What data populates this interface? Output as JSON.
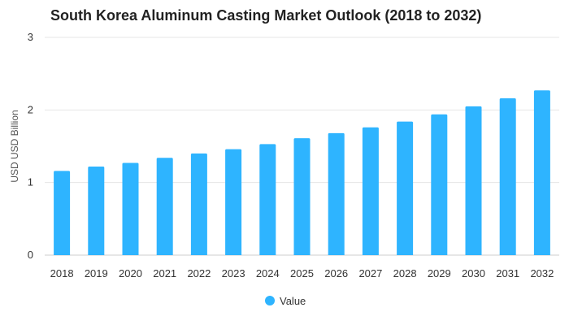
{
  "chart_data": {
    "type": "bar",
    "title": "South Korea Aluminum Casting Market Outlook (2018 to 2032)",
    "xlabel": "",
    "ylabel": "USD USD Billion",
    "categories": [
      "2018",
      "2019",
      "2020",
      "2021",
      "2022",
      "2023",
      "2024",
      "2025",
      "2026",
      "2027",
      "2028",
      "2029",
      "2030",
      "2031",
      "2032"
    ],
    "series": [
      {
        "name": "Value",
        "values": [
          1.16,
          1.22,
          1.27,
          1.34,
          1.4,
          1.46,
          1.53,
          1.61,
          1.68,
          1.76,
          1.84,
          1.94,
          2.05,
          2.16,
          2.27
        ]
      }
    ],
    "ylim": [
      0,
      3
    ],
    "yticks": [
      0,
      1,
      2,
      3
    ],
    "grid": true,
    "legend_position": "bottom",
    "colors": {
      "bar": "#2eb4ff",
      "grid": "#e6e6e6"
    }
  }
}
